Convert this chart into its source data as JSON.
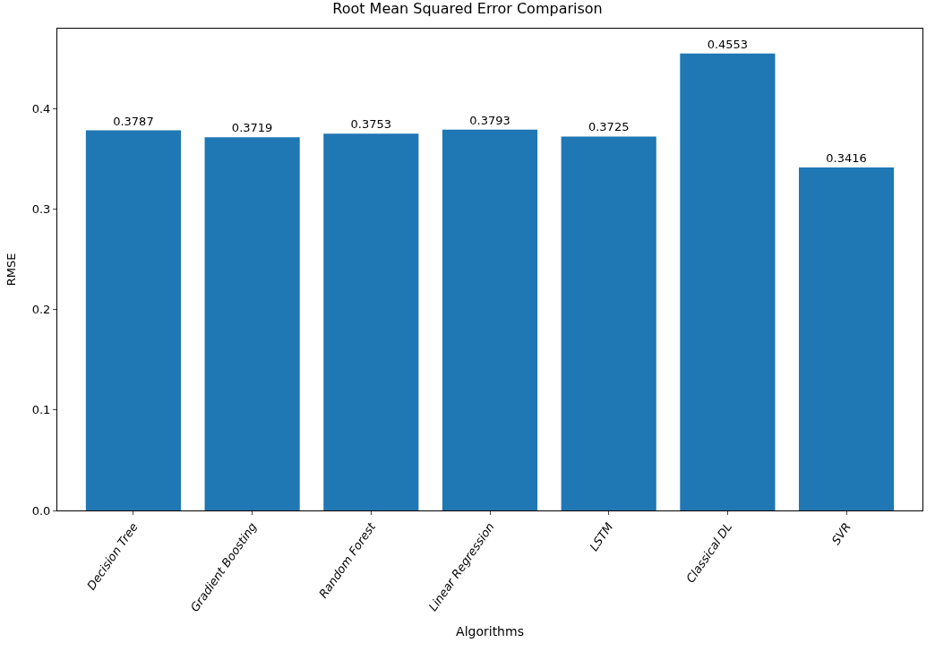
{
  "chart_data": {
    "type": "bar",
    "title": "Root Mean Squared Error Comparison",
    "xlabel": "Algorithms",
    "ylabel": "RMSE",
    "categories": [
      "Decision Tree",
      "Gradient Boosting",
      "Random Forest",
      "Linear Regression",
      "LSTM",
      "Classical DL",
      "SVR"
    ],
    "values": [
      0.3787,
      0.3719,
      0.3753,
      0.3793,
      0.3725,
      0.4553,
      0.3416
    ],
    "color": "#1f77b4",
    "data_labels": true,
    "ylim": [
      0,
      0.48
    ],
    "yticks": [
      {
        "value": 0,
        "label": "0.0"
      },
      0.1,
      0.2,
      0.3,
      0.4
    ],
    "grid": false,
    "legend": false
  }
}
